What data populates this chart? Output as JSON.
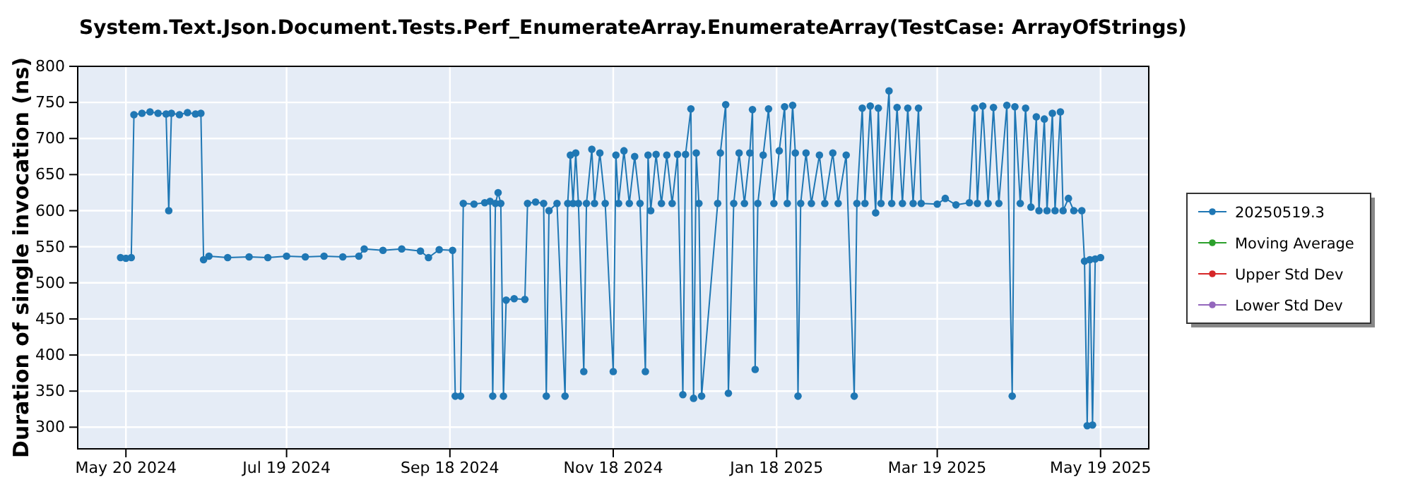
{
  "chart_data": {
    "type": "line",
    "title": "System.Text.Json.Document.Tests.Perf_EnumerateArray.EnumerateArray(TestCase: ArrayOfStrings)",
    "ylabel": "Duration of single invocation (ns)",
    "xlim": [
      "2024-05-02",
      "2025-06-06"
    ],
    "xticks": [
      {
        "value": "2024-05-20",
        "label": "May 20 2024"
      },
      {
        "value": "2024-07-19",
        "label": "Jul 19 2024"
      },
      {
        "value": "2024-09-18",
        "label": "Sep 18 2024"
      },
      {
        "value": "2024-11-18",
        "label": "Nov 18 2024"
      },
      {
        "value": "2025-01-18",
        "label": "Jan 18 2025"
      },
      {
        "value": "2025-03-19",
        "label": "Mar 19 2025"
      },
      {
        "value": "2025-05-19",
        "label": "May 19 2025"
      }
    ],
    "ylim": [
      270,
      800
    ],
    "yticks": [
      300,
      350,
      400,
      450,
      500,
      550,
      600,
      650,
      700,
      750,
      800
    ],
    "grid": true,
    "legend": "right",
    "marker": "circle",
    "line_style": "solid",
    "series": [
      {
        "name": "20250519.3",
        "color": "#1f77b4",
        "x": [
          "2024-05-18",
          "2024-05-20",
          "2024-05-22",
          "2024-05-23",
          "2024-05-26",
          "2024-05-29",
          "2024-06-01",
          "2024-06-04",
          "2024-06-05",
          "2024-06-06",
          "2024-06-09",
          "2024-06-12",
          "2024-06-15",
          "2024-06-17",
          "2024-06-18",
          "2024-06-20",
          "2024-06-27",
          "2024-07-05",
          "2024-07-12",
          "2024-07-19",
          "2024-07-26",
          "2024-08-02",
          "2024-08-09",
          "2024-08-15",
          "2024-08-17",
          "2024-08-24",
          "2024-08-31",
          "2024-09-07",
          "2024-09-10",
          "2024-09-14",
          "2024-09-19",
          "2024-09-20",
          "2024-09-22",
          "2024-09-23",
          "2024-09-27",
          "2024-10-01",
          "2024-10-03",
          "2024-10-04",
          "2024-10-05",
          "2024-10-06",
          "2024-10-07",
          "2024-10-08",
          "2024-10-09",
          "2024-10-12",
          "2024-10-16",
          "2024-10-17",
          "2024-10-20",
          "2024-10-23",
          "2024-10-24",
          "2024-10-25",
          "2024-10-28",
          "2024-10-31",
          "2024-11-01",
          "2024-11-02",
          "2024-11-03",
          "2024-11-04",
          "2024-11-05",
          "2024-11-07",
          "2024-11-08",
          "2024-11-10",
          "2024-11-11",
          "2024-11-13",
          "2024-11-15",
          "2024-11-18",
          "2024-11-19",
          "2024-11-20",
          "2024-11-22",
          "2024-11-24",
          "2024-11-26",
          "2024-11-28",
          "2024-11-30",
          "2024-12-01",
          "2024-12-02",
          "2024-12-04",
          "2024-12-06",
          "2024-12-08",
          "2024-12-10",
          "2024-12-12",
          "2024-12-14",
          "2024-12-15",
          "2024-12-17",
          "2024-12-18",
          "2024-12-19",
          "2024-12-20",
          "2024-12-21",
          "2024-12-27",
          "2024-12-28",
          "2024-12-30",
          "2024-12-31",
          "2025-01-02",
          "2025-01-04",
          "2025-01-06",
          "2025-01-08",
          "2025-01-09",
          "2025-01-10",
          "2025-01-11",
          "2025-01-13",
          "2025-01-15",
          "2025-01-17",
          "2025-01-19",
          "2025-01-21",
          "2025-01-22",
          "2025-01-24",
          "2025-01-25",
          "2025-01-26",
          "2025-01-27",
          "2025-01-29",
          "2025-01-31",
          "2025-02-03",
          "2025-02-05",
          "2025-02-08",
          "2025-02-10",
          "2025-02-13",
          "2025-02-16",
          "2025-02-17",
          "2025-02-19",
          "2025-02-20",
          "2025-02-22",
          "2025-02-24",
          "2025-02-25",
          "2025-02-26",
          "2025-03-01",
          "2025-03-02",
          "2025-03-04",
          "2025-03-06",
          "2025-03-08",
          "2025-03-10",
          "2025-03-12",
          "2025-03-13",
          "2025-03-19",
          "2025-03-22",
          "2025-03-26",
          "2025-03-31",
          "2025-04-02",
          "2025-04-03",
          "2025-04-05",
          "2025-04-07",
          "2025-04-09",
          "2025-04-11",
          "2025-04-14",
          "2025-04-16",
          "2025-04-17",
          "2025-04-19",
          "2025-04-21",
          "2025-04-23",
          "2025-04-25",
          "2025-04-26",
          "2025-04-28",
          "2025-04-29",
          "2025-05-01",
          "2025-05-02",
          "2025-05-04",
          "2025-05-05",
          "2025-05-07",
          "2025-05-09",
          "2025-05-12",
          "2025-05-13",
          "2025-05-14",
          "2025-05-15",
          "2025-05-16",
          "2025-05-17",
          "2025-05-19"
        ],
        "values": [
          535,
          534,
          535,
          733,
          735,
          737,
          735,
          734,
          600,
          735,
          733,
          736,
          734,
          735,
          532,
          537,
          535,
          536,
          535,
          537,
          536,
          537,
          536,
          537,
          547,
          545,
          547,
          544,
          535,
          546,
          545,
          343,
          343,
          610,
          609,
          611,
          613,
          343,
          610,
          625,
          610,
          343,
          476,
          478,
          477,
          610,
          612,
          610,
          343,
          600,
          610,
          343,
          610,
          677,
          610,
          680,
          610,
          377,
          610,
          685,
          610,
          680,
          610,
          377,
          677,
          610,
          683,
          610,
          675,
          610,
          377,
          677,
          600,
          678,
          610,
          677,
          610,
          678,
          345,
          678,
          741,
          340,
          680,
          610,
          343,
          610,
          680,
          747,
          347,
          610,
          680,
          610,
          680,
          740,
          380,
          610,
          677,
          741,
          610,
          683,
          744,
          610,
          746,
          680,
          343,
          610,
          680,
          610,
          677,
          610,
          680,
          610,
          677,
          343,
          610,
          742,
          610,
          745,
          597,
          742,
          610,
          766,
          610,
          743,
          610,
          742,
          610,
          742,
          610,
          609,
          617,
          608,
          611,
          742,
          610,
          745,
          610,
          743,
          610,
          746,
          343,
          744,
          610,
          742,
          605,
          730,
          600,
          727,
          600,
          735,
          600,
          737,
          600,
          617,
          600,
          600,
          530,
          302,
          532,
          303,
          533,
          535
        ]
      },
      {
        "name": "Moving Average",
        "color": "#2ca02c"
      },
      {
        "name": "Upper Std Dev",
        "color": "#d62728"
      },
      {
        "name": "Lower Std Dev",
        "color": "#9467bd"
      }
    ]
  }
}
